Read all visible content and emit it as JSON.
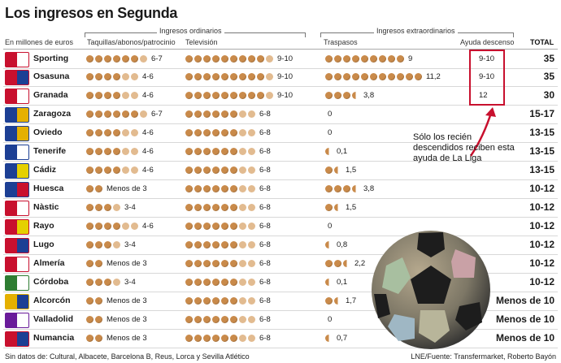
{
  "title": "Los ingresos en Segunda",
  "headers": {
    "units": "En millones de euros",
    "ordinarios": "Ingresos ordinarios",
    "extraordinarios": "Ingresos extraordinarios",
    "taquillas": "Taquillas/abonos/patrocinio",
    "television": "Televisión",
    "traspasos": "Traspasos",
    "ayuda": "Ayuda descenso",
    "total": "TOTAL"
  },
  "note": "Sólo los recién descendidos reciben esta ayuda de La Liga",
  "footer": {
    "left": "Sin datos de: Cultural, Albacete, Barcelona B, Reus, Lorca y Sevilla Atlético",
    "right": "LNE/Fuente: Transfermarket, Roberto Bayón"
  },
  "colors": {
    "coin": "#c98a4a",
    "coin_pale": "#e2bb90",
    "highlight": "#c8102e"
  },
  "chart_data": {
    "type": "table",
    "columns": [
      "Taquillas/abonos/patrocinio",
      "Televisión",
      "Traspasos",
      "Ayuda descenso",
      "TOTAL"
    ],
    "rows": [
      {
        "team": "Sporting",
        "crest_colors": [
          "#c8102e",
          "#ffffff"
        ],
        "taquillas": {
          "label": "6-7",
          "full": 6,
          "half": 0,
          "pale": 1
        },
        "tv": {
          "label": "9-10",
          "full": 9,
          "half": 0,
          "pale": 1
        },
        "traspasos": {
          "label": "9",
          "full": 9,
          "half": 0
        },
        "ayuda": "9-10",
        "total": "35"
      },
      {
        "team": "Osasuna",
        "crest_colors": [
          "#c8102e",
          "#1c3f94"
        ],
        "taquillas": {
          "label": "4-6",
          "full": 4,
          "half": 0,
          "pale": 2
        },
        "tv": {
          "label": "9-10",
          "full": 9,
          "half": 0,
          "pale": 1
        },
        "traspasos": {
          "label": "11,2",
          "full": 11,
          "half": 0
        },
        "ayuda": "9-10",
        "total": "35"
      },
      {
        "team": "Granada",
        "crest_colors": [
          "#c8102e",
          "#ffffff"
        ],
        "taquillas": {
          "label": "4-6",
          "full": 4,
          "half": 0,
          "pale": 2
        },
        "tv": {
          "label": "9-10",
          "full": 9,
          "half": 0,
          "pale": 1
        },
        "traspasos": {
          "label": "3,8",
          "full": 3,
          "half": 1
        },
        "ayuda": "12",
        "total": "30"
      },
      {
        "team": "Zaragoza",
        "crest_colors": [
          "#1c3f94",
          "#e5b000"
        ],
        "taquillas": {
          "label": "6-7",
          "full": 6,
          "half": 0,
          "pale": 1
        },
        "tv": {
          "label": "6-8",
          "full": 6,
          "half": 0,
          "pale": 2
        },
        "traspasos": {
          "label": "0",
          "full": 0,
          "half": 0
        },
        "ayuda": "",
        "total": "15-17"
      },
      {
        "team": "Oviedo",
        "crest_colors": [
          "#1c3f94",
          "#e5b000"
        ],
        "taquillas": {
          "label": "4-6",
          "full": 4,
          "half": 0,
          "pale": 2
        },
        "tv": {
          "label": "6-8",
          "full": 6,
          "half": 0,
          "pale": 2
        },
        "traspasos": {
          "label": "0",
          "full": 0,
          "half": 0
        },
        "ayuda": "",
        "total": "13-15"
      },
      {
        "team": "Tenerife",
        "crest_colors": [
          "#1c3f94",
          "#ffffff"
        ],
        "taquillas": {
          "label": "4-6",
          "full": 4,
          "half": 0,
          "pale": 2
        },
        "tv": {
          "label": "6-8",
          "full": 6,
          "half": 0,
          "pale": 2
        },
        "traspasos": {
          "label": "0,1",
          "full": 0,
          "half": 1
        },
        "ayuda": "",
        "total": "13-15"
      },
      {
        "team": "Cádiz",
        "crest_colors": [
          "#1c3f94",
          "#e5d000"
        ],
        "taquillas": {
          "label": "4-6",
          "full": 4,
          "half": 0,
          "pale": 2
        },
        "tv": {
          "label": "6-8",
          "full": 6,
          "half": 0,
          "pale": 2
        },
        "traspasos": {
          "label": "1,5",
          "full": 1,
          "half": 1
        },
        "ayuda": "",
        "total": "13-15"
      },
      {
        "team": "Huesca",
        "crest_colors": [
          "#1c3f94",
          "#c8102e"
        ],
        "taquillas": {
          "label": "Menos de 3",
          "full": 2,
          "half": 0,
          "pale": 0
        },
        "tv": {
          "label": "6-8",
          "full": 6,
          "half": 0,
          "pale": 2
        },
        "traspasos": {
          "label": "3,8",
          "full": 3,
          "half": 1
        },
        "ayuda": "",
        "total": "10-12"
      },
      {
        "team": "Nàstic",
        "crest_colors": [
          "#c8102e",
          "#ffffff"
        ],
        "taquillas": {
          "label": "3-4",
          "full": 3,
          "half": 0,
          "pale": 1
        },
        "tv": {
          "label": "6-8",
          "full": 6,
          "half": 0,
          "pale": 2
        },
        "traspasos": {
          "label": "1,5",
          "full": 1,
          "half": 1
        },
        "ayuda": "",
        "total": "10-12"
      },
      {
        "team": "Rayo",
        "crest_colors": [
          "#c8102e",
          "#e5d000"
        ],
        "taquillas": {
          "label": "4-6",
          "full": 4,
          "half": 0,
          "pale": 2
        },
        "tv": {
          "label": "6-8",
          "full": 6,
          "half": 0,
          "pale": 2
        },
        "traspasos": {
          "label": "0",
          "full": 0,
          "half": 0
        },
        "ayuda": "",
        "total": "10-12"
      },
      {
        "team": "Lugo",
        "crest_colors": [
          "#c8102e",
          "#1c3f94"
        ],
        "taquillas": {
          "label": "3-4",
          "full": 3,
          "half": 0,
          "pale": 1
        },
        "tv": {
          "label": "6-8",
          "full": 6,
          "half": 0,
          "pale": 2
        },
        "traspasos": {
          "label": "0,8",
          "full": 0,
          "half": 1
        },
        "ayuda": "",
        "total": "10-12"
      },
      {
        "team": "Almería",
        "crest_colors": [
          "#c8102e",
          "#ffffff"
        ],
        "taquillas": {
          "label": "Menos de 3",
          "full": 2,
          "half": 0,
          "pale": 0
        },
        "tv": {
          "label": "6-8",
          "full": 6,
          "half": 0,
          "pale": 2
        },
        "traspasos": {
          "label": "2,2",
          "full": 2,
          "half": 1
        },
        "ayuda": "",
        "total": "10-12"
      },
      {
        "team": "Córdoba",
        "crest_colors": [
          "#2e7d32",
          "#ffffff"
        ],
        "taquillas": {
          "label": "3-4",
          "full": 3,
          "half": 0,
          "pale": 1
        },
        "tv": {
          "label": "6-8",
          "full": 6,
          "half": 0,
          "pale": 2
        },
        "traspasos": {
          "label": "0,1",
          "full": 0,
          "half": 1
        },
        "ayuda": "",
        "total": "10-12"
      },
      {
        "team": "Alcorcón",
        "crest_colors": [
          "#e5b000",
          "#1c3f94"
        ],
        "taquillas": {
          "label": "Menos de 3",
          "full": 2,
          "half": 0,
          "pale": 0
        },
        "tv": {
          "label": "6-8",
          "full": 6,
          "half": 0,
          "pale": 2
        },
        "traspasos": {
          "label": "1,7",
          "full": 1,
          "half": 1
        },
        "ayuda": "",
        "total": "Menos de 10"
      },
      {
        "team": "Valladolid",
        "crest_colors": [
          "#6a1b9a",
          "#ffffff"
        ],
        "taquillas": {
          "label": "Menos de 3",
          "full": 2,
          "half": 0,
          "pale": 0
        },
        "tv": {
          "label": "6-8",
          "full": 6,
          "half": 0,
          "pale": 2
        },
        "traspasos": {
          "label": "0",
          "full": 0,
          "half": 0
        },
        "ayuda": "",
        "total": "Menos de 10"
      },
      {
        "team": "Numancia",
        "crest_colors": [
          "#c8102e",
          "#1c3f94"
        ],
        "taquillas": {
          "label": "Menos de 3",
          "full": 2,
          "half": 0,
          "pale": 0
        },
        "tv": {
          "label": "6-8",
          "full": 6,
          "half": 0,
          "pale": 2
        },
        "traspasos": {
          "label": "0,7",
          "full": 0,
          "half": 1
        },
        "ayuda": "",
        "total": "Menos de 10"
      }
    ]
  }
}
